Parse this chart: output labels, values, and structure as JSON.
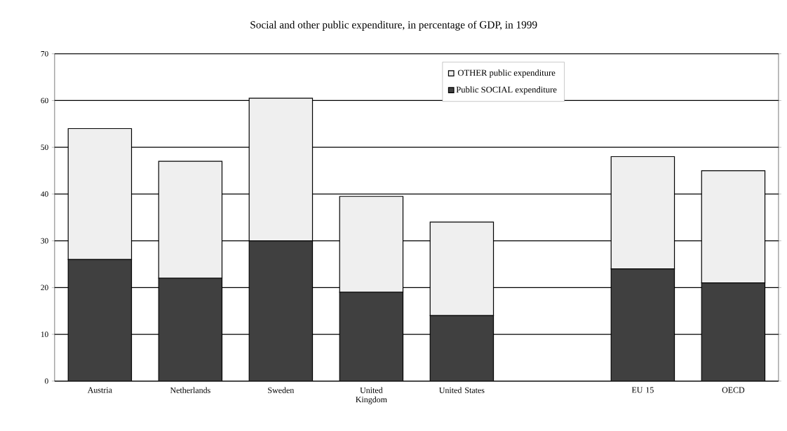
{
  "chart_data": {
    "type": "bar",
    "title": "Social and other public expenditure, in percentage of GDP, in 1999",
    "categories": [
      "Austria",
      "Netherlands",
      "Sweden",
      "United Kingdom",
      "United States",
      null,
      "EU 15",
      "OECD"
    ],
    "stacked": true,
    "series": [
      {
        "name": "Public SOCIAL expenditure",
        "color": "#404040",
        "values": [
          26,
          22,
          30,
          19,
          14,
          null,
          24,
          21
        ]
      },
      {
        "name": "OTHER public expenditure",
        "color": "#efefef",
        "values": [
          28,
          25,
          30.5,
          20.5,
          20,
          null,
          24,
          24
        ]
      }
    ],
    "ylim": [
      0,
      70
    ],
    "yticks": [
      0,
      10,
      20,
      30,
      40,
      50,
      60,
      70
    ],
    "grid": "y",
    "legend": "top"
  }
}
